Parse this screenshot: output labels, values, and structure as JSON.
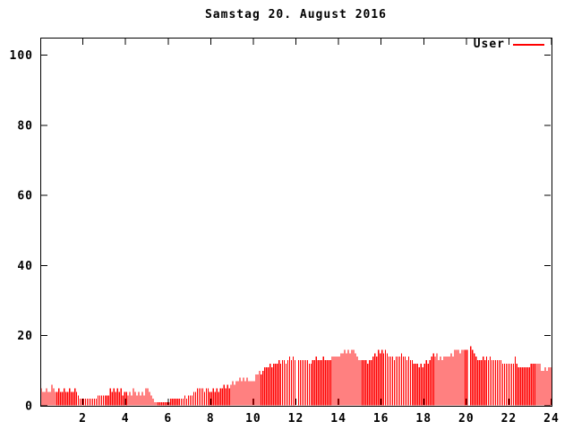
{
  "window": {
    "title": "Samstag 20. August 2016"
  },
  "legend": {
    "label": "User"
  },
  "colors": {
    "bars": "#ff0000",
    "frame": "#000000",
    "text": "#000000",
    "background": "#ffffff"
  },
  "chart_data": {
    "type": "bar",
    "title": "Samstag 20. August 2016",
    "xlabel": "",
    "ylabel": "",
    "x_unit": "hour of day",
    "sample_interval_minutes": 5,
    "xlim": [
      0,
      24
    ],
    "ylim": [
      0,
      105
    ],
    "x_ticks": [
      2,
      4,
      6,
      8,
      10,
      12,
      14,
      16,
      18,
      20,
      22,
      24
    ],
    "y_ticks": [
      0,
      20,
      40,
      60,
      80,
      100
    ],
    "grid": false,
    "legend_position": "top-right-inside",
    "missing_samples_hours": [
      12.0,
      20.1
    ],
    "series": [
      {
        "name": "User",
        "color": "#ff0000",
        "values": [
          5,
          4,
          4,
          5,
          4,
          4,
          6,
          5,
          4,
          4,
          5,
          4,
          4,
          5,
          4,
          4,
          5,
          4,
          4,
          5,
          4,
          3,
          2,
          2,
          2,
          2,
          2,
          2,
          2,
          2,
          2,
          2,
          3,
          3,
          3,
          3,
          3,
          3,
          3,
          5,
          4,
          5,
          4,
          5,
          4,
          5,
          3,
          4,
          4,
          3,
          4,
          3,
          5,
          4,
          3,
          4,
          3,
          4,
          3,
          5,
          5,
          4,
          3,
          2,
          1,
          1,
          1,
          1,
          1,
          1,
          1,
          1,
          1,
          2,
          2,
          2,
          2,
          2,
          2,
          2,
          2,
          3,
          2,
          3,
          3,
          3,
          4,
          4,
          5,
          5,
          5,
          5,
          4,
          5,
          5,
          4,
          4,
          5,
          4,
          5,
          4,
          5,
          5,
          6,
          5,
          6,
          5,
          6,
          7,
          6,
          7,
          7,
          8,
          7,
          8,
          7,
          8,
          7,
          7,
          7,
          7,
          9,
          9,
          10,
          9,
          10,
          11,
          11,
          11,
          12,
          11,
          12,
          12,
          12,
          13,
          12,
          13,
          13,
          12,
          13,
          14,
          13,
          14,
          13,
          0,
          13,
          13,
          13,
          13,
          13,
          13,
          12,
          12,
          13,
          13,
          14,
          13,
          13,
          13,
          14,
          13,
          13,
          13,
          13,
          14,
          14,
          14,
          14,
          14,
          15,
          15,
          16,
          15,
          16,
          15,
          16,
          16,
          15,
          14,
          13,
          13,
          13,
          13,
          13,
          12,
          13,
          13,
          14,
          15,
          14,
          16,
          15,
          16,
          15,
          16,
          15,
          14,
          14,
          14,
          13,
          14,
          14,
          14,
          15,
          14,
          14,
          13,
          14,
          13,
          13,
          12,
          12,
          12,
          11,
          12,
          11,
          12,
          13,
          12,
          13,
          14,
          15,
          14,
          15,
          13,
          14,
          13,
          14,
          14,
          14,
          14,
          15,
          14,
          16,
          16,
          16,
          15,
          16,
          16,
          16,
          16,
          0,
          17,
          16,
          15,
          14,
          13,
          13,
          13,
          14,
          13,
          14,
          13,
          14,
          13,
          13,
          13,
          13,
          13,
          13,
          12,
          12,
          12,
          12,
          12,
          12,
          12,
          14,
          12,
          11,
          11,
          11,
          11,
          11,
          11,
          11,
          12,
          12,
          12,
          12,
          12,
          12,
          10,
          10,
          11,
          10,
          11,
          11
        ]
      }
    ]
  }
}
